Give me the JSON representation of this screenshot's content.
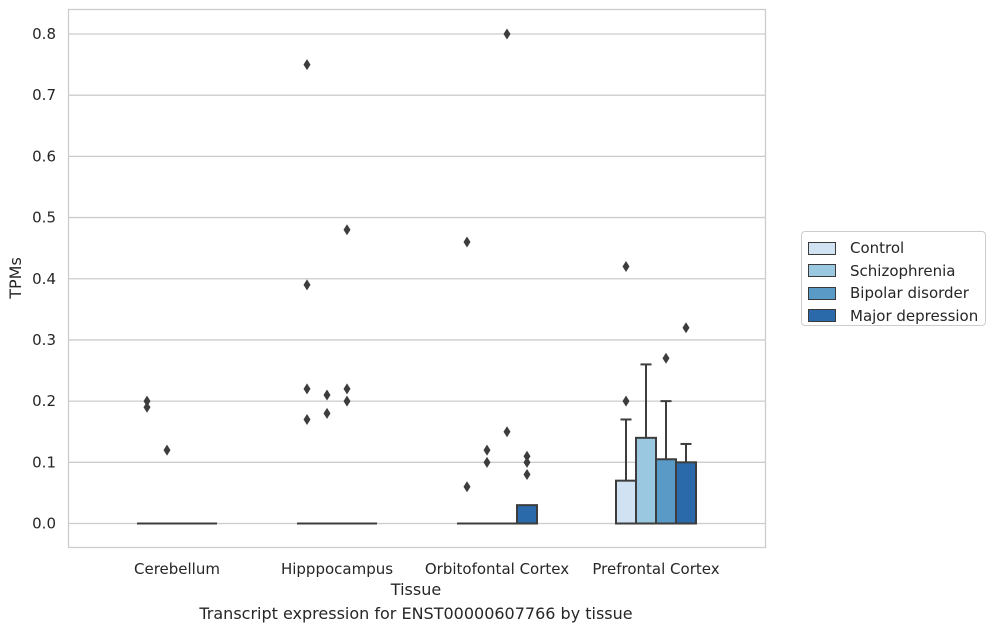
{
  "chart_data": {
    "type": "box",
    "xlabel": "Tissue",
    "ylabel": "TPMs",
    "caption": "Transcript expression for ENST00000607766 by tissue",
    "ylim": [
      -0.04,
      0.84
    ],
    "yticks": [
      "0.0",
      "0.1",
      "0.2",
      "0.3",
      "0.4",
      "0.5",
      "0.6",
      "0.7",
      "0.8"
    ],
    "grid": true,
    "legend_position": "right",
    "categories": [
      "Cerebellum",
      "Hipppocampus",
      "Orbitofontal Cortex",
      "Prefrontal Cortex"
    ],
    "series": [
      {
        "name": "Control",
        "color": "#d1e2f2",
        "boxes": [
          {
            "q1": 0,
            "median": 0,
            "q3": 0,
            "whisker_low": 0,
            "whisker_high": 0,
            "outliers": [
              0.2,
              0.19
            ]
          },
          {
            "q1": 0,
            "median": 0,
            "q3": 0,
            "whisker_low": 0,
            "whisker_high": 0,
            "outliers": [
              0.75,
              0.39,
              0.22,
              0.17
            ]
          },
          {
            "q1": 0,
            "median": 0,
            "q3": 0,
            "whisker_low": 0,
            "whisker_high": 0,
            "outliers": [
              0.46,
              0.06
            ]
          },
          {
            "q1": 0,
            "median": 0,
            "q3": 0.07,
            "whisker_low": 0,
            "whisker_high": 0.17,
            "outliers": [
              0.42,
              0.2
            ]
          }
        ]
      },
      {
        "name": "Schizophrenia",
        "color": "#9ac8e0",
        "boxes": [
          {
            "q1": 0,
            "median": 0,
            "q3": 0,
            "whisker_low": 0,
            "whisker_high": 0,
            "outliers": [
              0.12
            ]
          },
          {
            "q1": 0,
            "median": 0,
            "q3": 0,
            "whisker_low": 0,
            "whisker_high": 0,
            "outliers": [
              0.21,
              0.18
            ]
          },
          {
            "q1": 0,
            "median": 0,
            "q3": 0,
            "whisker_low": 0,
            "whisker_high": 0,
            "outliers": [
              0.12,
              0.1
            ]
          },
          {
            "q1": 0,
            "median": 0,
            "q3": 0.14,
            "whisker_low": 0,
            "whisker_high": 0.26,
            "outliers": []
          }
        ]
      },
      {
        "name": "Bipolar disorder",
        "color": "#5a9ac6",
        "boxes": [
          {
            "q1": 0,
            "median": 0,
            "q3": 0,
            "whisker_low": 0,
            "whisker_high": 0,
            "outliers": []
          },
          {
            "q1": 0,
            "median": 0,
            "q3": 0,
            "whisker_low": 0,
            "whisker_high": 0,
            "outliers": [
              0.48,
              0.22,
              0.2
            ]
          },
          {
            "q1": 0,
            "median": 0,
            "q3": 0,
            "whisker_low": 0,
            "whisker_high": 0,
            "outliers": [
              0.8,
              0.15
            ]
          },
          {
            "q1": 0,
            "median": 0,
            "q3": 0.105,
            "whisker_low": 0,
            "whisker_high": 0.2,
            "outliers": [
              0.27
            ]
          }
        ]
      },
      {
        "name": "Major depression",
        "color": "#2a6aaa",
        "boxes": [
          {
            "q1": 0,
            "median": 0,
            "q3": 0,
            "whisker_low": 0,
            "whisker_high": 0,
            "outliers": []
          },
          {
            "q1": 0,
            "median": 0,
            "q3": 0,
            "whisker_low": 0,
            "whisker_high": 0,
            "outliers": []
          },
          {
            "q1": 0,
            "median": 0,
            "q3": 0.03,
            "whisker_low": 0,
            "whisker_high": 0.03,
            "outliers": [
              0.11,
              0.1,
              0.08
            ]
          },
          {
            "q1": 0,
            "median": 0,
            "q3": 0.1,
            "whisker_low": 0,
            "whisker_high": 0.13,
            "outliers": [
              0.32
            ]
          }
        ]
      }
    ]
  }
}
